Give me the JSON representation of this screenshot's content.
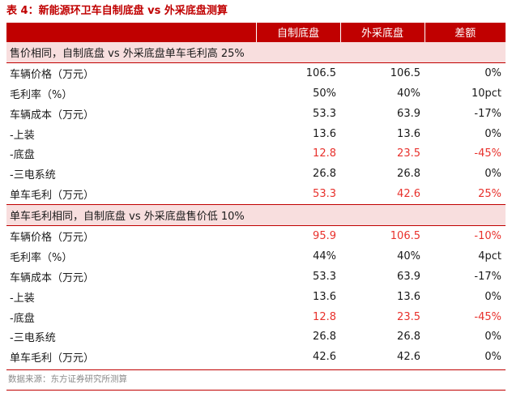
{
  "title": "表 4：新能源环卫车自制底盘 vs 外采底盘测算",
  "header": {
    "col0": "",
    "col1": "自制底盘",
    "col2": "外采底盘",
    "col3": "差额"
  },
  "section1": {
    "heading": "售价相同，自制底盘 vs 外采底盘单车毛利高 25%",
    "rows": [
      {
        "label": "车辆价格（万元）",
        "v1": "106.5",
        "v2": "106.5",
        "v3": "0%"
      },
      {
        "label": "毛利率（%）",
        "v1": "50%",
        "v2": "40%",
        "v3": "10pct"
      },
      {
        "label": "车辆成本（万元）",
        "v1": "53.3",
        "v2": "63.9",
        "v3": "-17%"
      },
      {
        "label": "-上装",
        "v1": "13.6",
        "v2": "13.6",
        "v3": "0%"
      },
      {
        "label": "-底盘",
        "v1": "12.8",
        "v2": "23.5",
        "v3": "-45%"
      },
      {
        "label": "-三电系统",
        "v1": "26.8",
        "v2": "26.8",
        "v3": "0%"
      },
      {
        "label": "单车毛利（万元）",
        "v1": "53.3",
        "v2": "42.6",
        "v3": "25%"
      }
    ]
  },
  "section2": {
    "heading": "单车毛利相同，自制底盘 vs 外采底盘售价低 10%",
    "rows": [
      {
        "label": "车辆价格（万元）",
        "v1": "95.9",
        "v2": "106.5",
        "v3": "-10%"
      },
      {
        "label": "毛利率（%）",
        "v1": "44%",
        "v2": "40%",
        "v3": "4pct"
      },
      {
        "label": "车辆成本（万元）",
        "v1": "53.3",
        "v2": "63.9",
        "v3": "-17%"
      },
      {
        "label": "-上装",
        "v1": "13.6",
        "v2": "13.6",
        "v3": "0%"
      },
      {
        "label": "-底盘",
        "v1": "12.8",
        "v2": "23.5",
        "v3": "-45%"
      },
      {
        "label": "-三电系统",
        "v1": "26.8",
        "v2": "26.8",
        "v3": "0%"
      },
      {
        "label": "单车毛利（万元）",
        "v1": "42.6",
        "v2": "42.6",
        "v3": "0%"
      }
    ]
  },
  "highlight_color": "#e8312c",
  "accent_color": "#c00000",
  "source": "数据来源：东方证券研究所测算"
}
